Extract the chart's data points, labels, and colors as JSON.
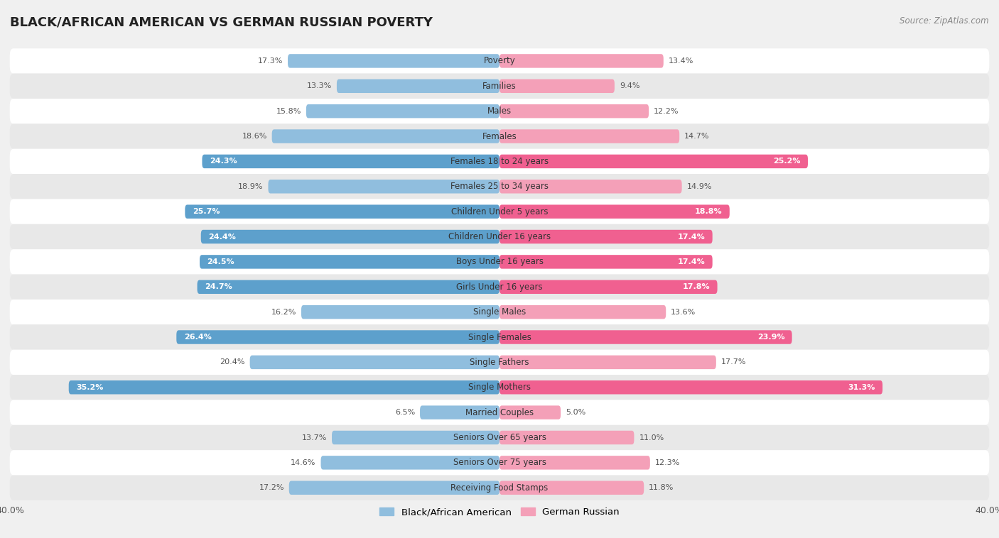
{
  "title": "BLACK/AFRICAN AMERICAN VS GERMAN RUSSIAN POVERTY",
  "source": "Source: ZipAtlas.com",
  "categories": [
    "Poverty",
    "Families",
    "Males",
    "Females",
    "Females 18 to 24 years",
    "Females 25 to 34 years",
    "Children Under 5 years",
    "Children Under 16 years",
    "Boys Under 16 years",
    "Girls Under 16 years",
    "Single Males",
    "Single Females",
    "Single Fathers",
    "Single Mothers",
    "Married Couples",
    "Seniors Over 65 years",
    "Seniors Over 75 years",
    "Receiving Food Stamps"
  ],
  "black_values": [
    17.3,
    13.3,
    15.8,
    18.6,
    24.3,
    18.9,
    25.7,
    24.4,
    24.5,
    24.7,
    16.2,
    26.4,
    20.4,
    35.2,
    6.5,
    13.7,
    14.6,
    17.2
  ],
  "german_values": [
    13.4,
    9.4,
    12.2,
    14.7,
    25.2,
    14.9,
    18.8,
    17.4,
    17.4,
    17.8,
    13.6,
    23.9,
    17.7,
    31.3,
    5.0,
    11.0,
    12.3,
    11.8
  ],
  "black_color_normal": "#90bede",
  "black_color_highlight": "#5da0cc",
  "german_color_normal": "#f4a0b8",
  "german_color_highlight": "#f06090",
  "highlight_rows": [
    4,
    6,
    7,
    8,
    9,
    11,
    13
  ],
  "background_color": "#f0f0f0",
  "row_even_color": "#ffffff",
  "row_odd_color": "#e8e8e8",
  "xlim": 40.0,
  "bar_height": 0.55,
  "legend_labels": [
    "Black/African American",
    "German Russian"
  ],
  "title_fontsize": 13,
  "label_fontsize": 8.5,
  "value_fontsize": 8,
  "axis_fontsize": 9
}
